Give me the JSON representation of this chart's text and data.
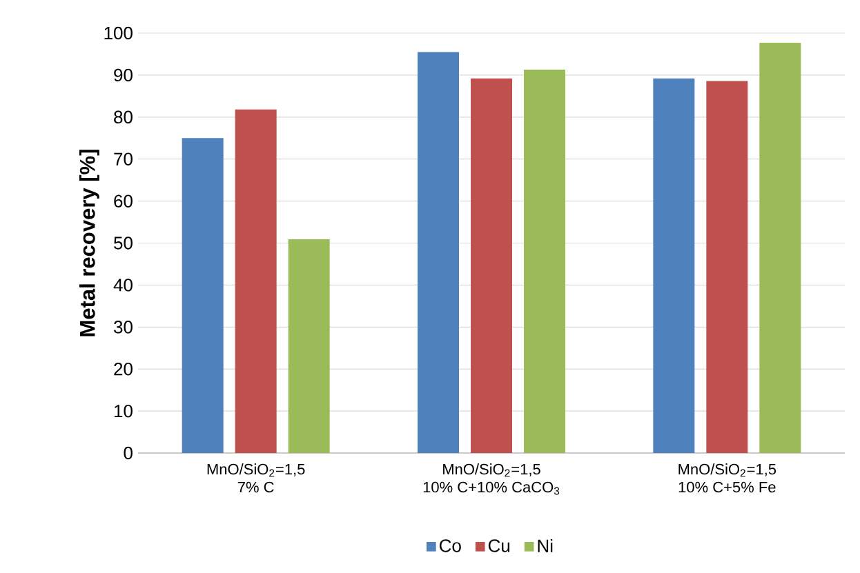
{
  "chart_data": {
    "type": "bar",
    "ylabel": "Metal recovery [%]",
    "categories": [
      "MnO/SiO$_{2}$=1,5\n7% C",
      "MnO/SiO$_{2}$=1,5\n10% C+10% CaCO$_{3}$",
      "MnO/SiO$_{2}$=1,5\n10% C+5% Fe"
    ],
    "series": [
      {
        "name": "Co",
        "color": "#4f81bd",
        "values": [
          75.0,
          95.5,
          89.2
        ]
      },
      {
        "name": "Cu",
        "color": "#c0504d",
        "values": [
          81.8,
          89.2,
          88.6
        ]
      },
      {
        "name": "Ni",
        "color": "#9bbb59",
        "values": [
          50.9,
          91.3,
          97.7
        ]
      }
    ],
    "ylim": [
      0,
      100
    ],
    "yticks": [
      0,
      10,
      20,
      30,
      40,
      50,
      60,
      70,
      80,
      90,
      100
    ],
    "grid": "y",
    "legend": "bottom"
  }
}
